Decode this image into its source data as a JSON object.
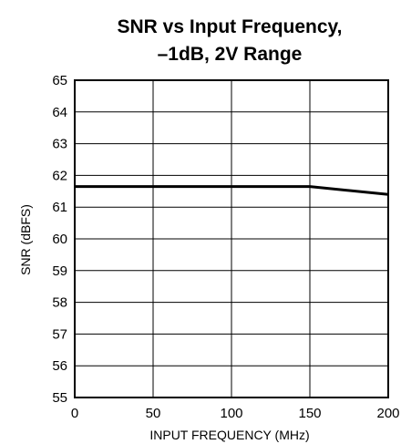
{
  "chart_data": {
    "type": "line",
    "title_lines": [
      "SNR vs Input Frequency,",
      "–1dB, 2V Range"
    ],
    "xlabel": "INPUT FREQUENCY (MHz)",
    "ylabel": "SNR (dBFS)",
    "xlim": [
      0,
      200
    ],
    "ylim": [
      55,
      65
    ],
    "x_ticks": [
      0,
      50,
      100,
      150,
      200
    ],
    "y_ticks": [
      55,
      56,
      57,
      58,
      59,
      60,
      61,
      62,
      63,
      64,
      65
    ],
    "grid": true,
    "legend": "none",
    "series": [
      {
        "x": [
          0,
          150,
          200
        ],
        "y": [
          61.65,
          61.65,
          61.4
        ]
      }
    ]
  },
  "colors": {
    "line": "#000000",
    "grid": "#000000",
    "background": "#ffffff"
  }
}
